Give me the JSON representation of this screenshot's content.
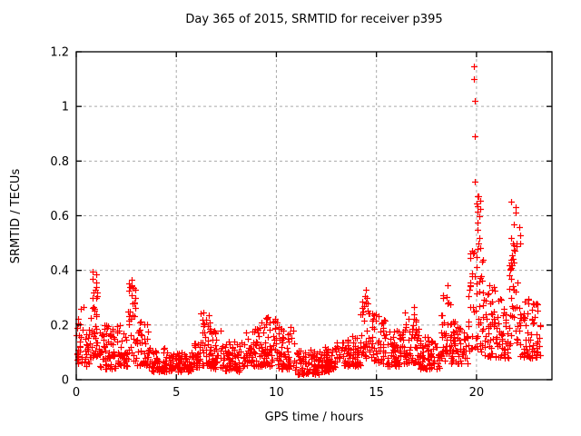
{
  "chart_data": {
    "type": "scatter",
    "title": "Day 365 of 2015, SRMTID for receiver p395",
    "xlabel": "GPS time / hours",
    "ylabel": "SRMTID / TECUs",
    "xlim": [
      0,
      23.77
    ],
    "ylim": [
      0,
      1.2
    ],
    "xticks": {
      "values": [
        0,
        5,
        10,
        15,
        20
      ],
      "labels": [
        "0",
        "5",
        "10",
        "15",
        "20"
      ]
    },
    "yticks": {
      "values": [
        0,
        0.2,
        0.4,
        0.6,
        0.8,
        1,
        1.2
      ],
      "labels": [
        "0",
        "0.2",
        "0.4",
        "0.6",
        "0.8",
        "1",
        "1.2"
      ]
    },
    "grid": {
      "visible": true,
      "style": "dashed",
      "color": "#aaaaaa"
    },
    "legend": "none",
    "series_name": "SRMTID",
    "marker": {
      "shape": "plus",
      "color": "#ff0000",
      "size": 7,
      "stroke_width": 1.2
    },
    "axis_color": "#000000",
    "background": "#ffffff",
    "seed": 1337,
    "y_skew": 1.35,
    "band_segments": [
      {
        "x0": 0.0,
        "x1": 0.4,
        "lo": 0.06,
        "hi": 0.28,
        "n": 30
      },
      {
        "x0": 0.4,
        "x1": 0.7,
        "lo": 0.05,
        "hi": 0.2,
        "n": 20
      },
      {
        "x0": 0.7,
        "x1": 1.1,
        "lo": 0.08,
        "hi": 0.38,
        "n": 35
      },
      {
        "x0": 1.1,
        "x1": 2.3,
        "lo": 0.04,
        "hi": 0.2,
        "n": 85
      },
      {
        "x0": 2.3,
        "x1": 2.6,
        "lo": 0.05,
        "hi": 0.18,
        "n": 20
      },
      {
        "x0": 2.6,
        "x1": 3.0,
        "lo": 0.07,
        "hi": 0.36,
        "n": 30
      },
      {
        "x0": 3.0,
        "x1": 3.6,
        "lo": 0.05,
        "hi": 0.22,
        "n": 40
      },
      {
        "x0": 3.6,
        "x1": 4.4,
        "lo": 0.03,
        "hi": 0.12,
        "n": 55
      },
      {
        "x0": 4.4,
        "x1": 5.8,
        "lo": 0.03,
        "hi": 0.1,
        "n": 95
      },
      {
        "x0": 5.8,
        "x1": 6.2,
        "lo": 0.04,
        "hi": 0.14,
        "n": 28
      },
      {
        "x0": 6.2,
        "x1": 6.7,
        "lo": 0.05,
        "hi": 0.25,
        "n": 35
      },
      {
        "x0": 6.7,
        "x1": 7.4,
        "lo": 0.04,
        "hi": 0.18,
        "n": 48
      },
      {
        "x0": 7.4,
        "x1": 8.4,
        "lo": 0.03,
        "hi": 0.14,
        "n": 68
      },
      {
        "x0": 8.4,
        "x1": 9.2,
        "lo": 0.05,
        "hi": 0.19,
        "n": 55
      },
      {
        "x0": 9.2,
        "x1": 10.1,
        "lo": 0.05,
        "hi": 0.23,
        "n": 62
      },
      {
        "x0": 10.1,
        "x1": 10.9,
        "lo": 0.04,
        "hi": 0.2,
        "n": 55
      },
      {
        "x0": 10.9,
        "x1": 12.3,
        "lo": 0.02,
        "hi": 0.11,
        "n": 95
      },
      {
        "x0": 12.3,
        "x1": 13.2,
        "lo": 0.03,
        "hi": 0.14,
        "n": 60
      },
      {
        "x0": 13.2,
        "x1": 14.2,
        "lo": 0.05,
        "hi": 0.16,
        "n": 68
      },
      {
        "x0": 14.2,
        "x1": 14.7,
        "lo": 0.08,
        "hi": 0.31,
        "n": 35
      },
      {
        "x0": 14.7,
        "x1": 15.5,
        "lo": 0.06,
        "hi": 0.25,
        "n": 55
      },
      {
        "x0": 15.5,
        "x1": 16.4,
        "lo": 0.05,
        "hi": 0.18,
        "n": 60
      },
      {
        "x0": 16.4,
        "x1": 17.1,
        "lo": 0.06,
        "hi": 0.25,
        "n": 48
      },
      {
        "x0": 17.1,
        "x1": 18.2,
        "lo": 0.04,
        "hi": 0.16,
        "n": 75
      },
      {
        "x0": 18.2,
        "x1": 18.7,
        "lo": 0.07,
        "hi": 0.33,
        "n": 35
      },
      {
        "x0": 18.7,
        "x1": 19.6,
        "lo": 0.06,
        "hi": 0.22,
        "n": 60
      },
      {
        "x0": 19.6,
        "x1": 20.4,
        "lo": 0.1,
        "hi": 0.5,
        "n": 55
      },
      {
        "x0": 20.4,
        "x1": 21.0,
        "lo": 0.08,
        "hi": 0.35,
        "n": 42
      },
      {
        "x0": 21.0,
        "x1": 21.6,
        "lo": 0.08,
        "hi": 0.3,
        "n": 40
      },
      {
        "x0": 21.6,
        "x1": 22.1,
        "lo": 0.12,
        "hi": 0.52,
        "n": 35
      },
      {
        "x0": 22.1,
        "x1": 22.7,
        "lo": 0.08,
        "hi": 0.3,
        "n": 40
      },
      {
        "x0": 22.7,
        "x1": 23.2,
        "lo": 0.08,
        "hi": 0.28,
        "n": 35
      }
    ],
    "peak_clusters": [
      {
        "x": 0.9,
        "dx": 0.12,
        "ys": [
          0.3,
          0.33,
          0.355,
          0.37,
          0.385,
          0.395
        ]
      },
      {
        "x": 2.75,
        "dx": 0.1,
        "ys": [
          0.28,
          0.31,
          0.34,
          0.365
        ]
      },
      {
        "x": 6.45,
        "dx": 0.1,
        "ys": [
          0.22,
          0.245
        ]
      },
      {
        "x": 9.7,
        "dx": 0.15,
        "ys": [
          0.21,
          0.23
        ]
      },
      {
        "x": 14.45,
        "dx": 0.1,
        "ys": [
          0.27,
          0.3,
          0.33
        ]
      },
      {
        "x": 16.8,
        "dx": 0.1,
        "ys": [
          0.24,
          0.265
        ]
      },
      {
        "x": 18.45,
        "dx": 0.12,
        "ys": [
          0.28,
          0.31,
          0.345
        ]
      },
      {
        "x": 20.1,
        "dx": 0.12,
        "ys": [
          0.45,
          0.48,
          0.52,
          0.55,
          0.575,
          0.6,
          0.615,
          0.625,
          0.635,
          0.645,
          0.655,
          0.67
        ]
      },
      {
        "x": 21.85,
        "dx": 0.15,
        "ys": [
          0.33,
          0.37,
          0.41,
          0.44,
          0.49,
          0.52,
          0.57,
          0.61,
          0.63,
          0.65
        ]
      },
      {
        "x": 22.15,
        "dx": 0.1,
        "ys": [
          0.5,
          0.53,
          0.56
        ]
      }
    ],
    "outliers": [
      [
        19.85,
        1.147
      ],
      [
        19.87,
        1.1
      ],
      [
        19.9,
        1.02
      ],
      [
        19.92,
        0.89
      ],
      [
        19.9,
        0.723
      ],
      [
        20.05,
        0.67
      ]
    ]
  }
}
